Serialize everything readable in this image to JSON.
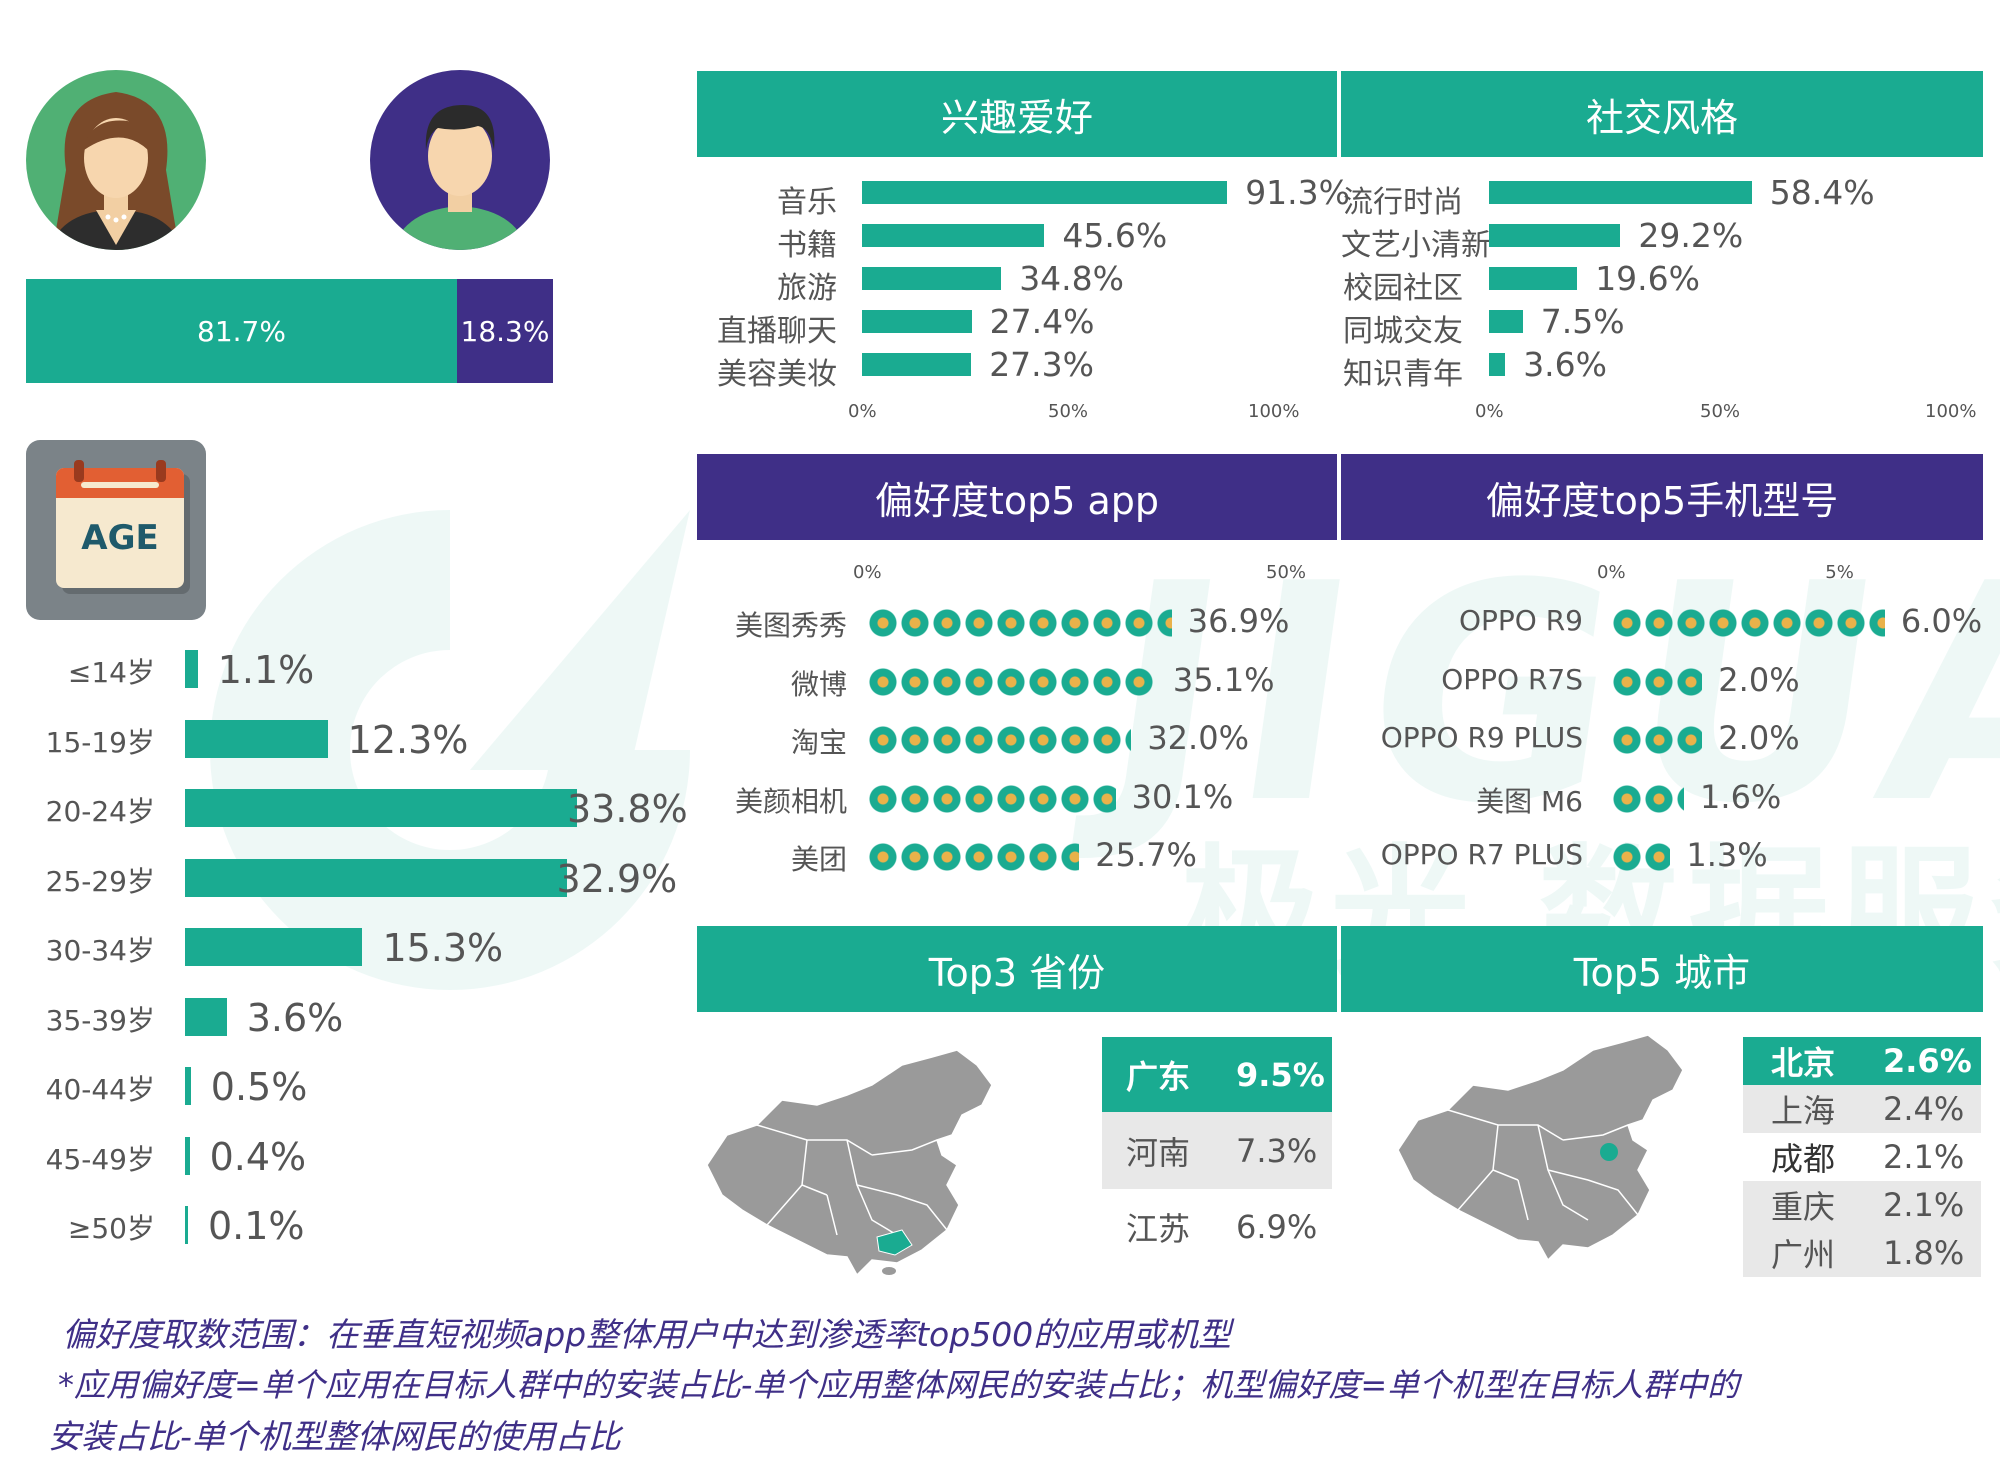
{
  "gender": {
    "female_pct": "81.7%",
    "male_pct": "18.3%",
    "female_share": 81.7,
    "male_share": 18.3,
    "female_color": "#1aab91",
    "male_color": "#3f2f87"
  },
  "age_icon_label": "AGE",
  "watermark": {
    "brand": "JIGUANG",
    "subtitle": "极光 数据服务"
  },
  "chart_data": [
    {
      "type": "bar",
      "id": "age",
      "categories": [
        "≤14岁",
        "15-19岁",
        "20-24岁",
        "25-29岁",
        "30-34岁",
        "35-39岁",
        "40-44岁",
        "45-49岁",
        "≥50岁"
      ],
      "values": [
        1.1,
        12.3,
        33.8,
        32.9,
        15.3,
        3.6,
        0.5,
        0.4,
        0.1
      ],
      "value_labels": [
        "1.1%",
        "12.3%",
        "33.8%",
        "32.9%",
        "15.3%",
        "3.6%",
        "0.5%",
        "0.4%",
        "0.1%"
      ],
      "orientation": "horizontal"
    },
    {
      "type": "bar",
      "id": "hobby",
      "title": "兴趣爱好",
      "categories": [
        "音乐",
        "书籍",
        "旅游",
        "直播聊天",
        "美容美妆"
      ],
      "values": [
        91.3,
        45.6,
        34.8,
        27.4,
        27.3
      ],
      "value_labels": [
        "91.3%",
        "45.6%",
        "34.8%",
        "27.4%",
        "27.3%"
      ],
      "xlim": [
        0,
        100
      ],
      "ticks": [
        "0%",
        "50%",
        "100%"
      ],
      "orientation": "horizontal"
    },
    {
      "type": "bar",
      "id": "social",
      "title": "社交风格",
      "categories": [
        "流行时尚",
        "文艺小清新",
        "校园社区",
        "同城交友",
        "知识青年"
      ],
      "values": [
        58.4,
        29.2,
        19.6,
        7.5,
        3.6
      ],
      "value_labels": [
        "58.4%",
        "29.2%",
        "19.6%",
        "7.5%",
        "3.6%"
      ],
      "xlim": [
        0,
        100
      ],
      "ticks": [
        "0%",
        "50%",
        "100%"
      ],
      "orientation": "horizontal"
    },
    {
      "type": "bar",
      "id": "apps",
      "title": "偏好度top5 app",
      "categories": [
        "美图秀秀",
        "微博",
        "淘宝",
        "美颜相机",
        "美团"
      ],
      "values": [
        36.9,
        35.1,
        32.0,
        30.1,
        25.7
      ],
      "value_labels": [
        "36.9%",
        "35.1%",
        "32.0%",
        "30.1%",
        "25.7%"
      ],
      "xlim": [
        0,
        50
      ],
      "ticks": [
        "0%",
        "50%"
      ],
      "orientation": "horizontal"
    },
    {
      "type": "bar",
      "id": "phones",
      "title": "偏好度top5手机型号",
      "categories": [
        "OPPO R9",
        "OPPO R7S",
        "OPPO R9 PLUS",
        "美图 M6",
        "OPPO R7 PLUS"
      ],
      "values": [
        6.0,
        2.0,
        2.0,
        1.6,
        1.3
      ],
      "value_labels": [
        "6.0%",
        "2.0%",
        "2.0%",
        "1.6%",
        "1.3%"
      ],
      "xlim": [
        0,
        5
      ],
      "ticks": [
        "0%",
        "5%"
      ],
      "orientation": "horizontal"
    },
    {
      "type": "table",
      "id": "provinces",
      "title": "Top3 省份",
      "rows": [
        [
          "广东",
          "9.5%"
        ],
        [
          "河南",
          "7.3%"
        ],
        [
          "江苏",
          "6.9%"
        ]
      ]
    },
    {
      "type": "table",
      "id": "cities",
      "title": "Top5 城市",
      "rows": [
        [
          "北京",
          "2.6%"
        ],
        [
          "上海",
          "2.4%"
        ],
        [
          "成都",
          "2.1%"
        ],
        [
          "重庆",
          "2.1%"
        ],
        [
          "广州",
          "1.8%"
        ]
      ]
    }
  ],
  "footer": {
    "line1": "偏好度取数范围：在垂直短视频app整体用户中达到渗透率top500的应用或机型",
    "line2": "*应用偏好度=单个应用在目标人群中的安装占比-单个应用整体网民的安装占比；机型偏好度=单个机型在目标人群中的",
    "line3": "安装占比-单个机型整体网民的使用占比"
  }
}
